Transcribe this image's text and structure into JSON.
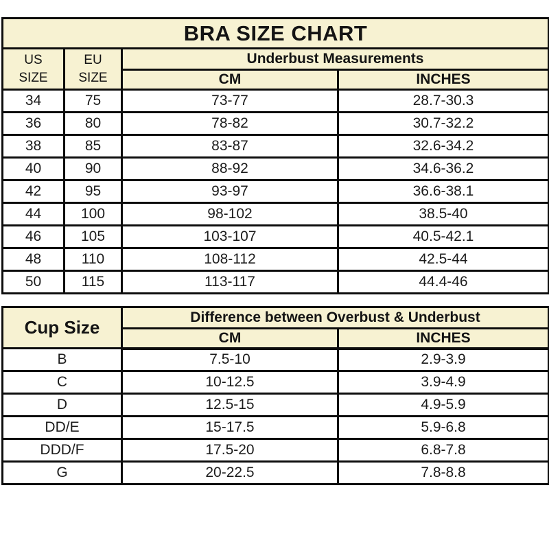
{
  "page": {
    "title": "BRA SIZE CHART",
    "colors": {
      "header_background": "#f7f2d2",
      "border": "#0d0d0d",
      "row_background": "#ffffff",
      "text": "#141414"
    }
  },
  "size_table": {
    "headers": {
      "us": "US\nSIZE",
      "eu": "EU\nSIZE",
      "group": "Underbust Measurements",
      "cm": "CM",
      "inches": "INCHES"
    },
    "rows": [
      {
        "us": "34",
        "eu": "75",
        "cm": "73-77",
        "inches": "28.7-30.3"
      },
      {
        "us": "36",
        "eu": "80",
        "cm": "78-82",
        "inches": "30.7-32.2"
      },
      {
        "us": "38",
        "eu": "85",
        "cm": "83-87",
        "inches": "32.6-34.2"
      },
      {
        "us": "40",
        "eu": "90",
        "cm": "88-92",
        "inches": "34.6-36.2"
      },
      {
        "us": "42",
        "eu": "95",
        "cm": "93-97",
        "inches": "36.6-38.1"
      },
      {
        "us": "44",
        "eu": "100",
        "cm": "98-102",
        "inches": "38.5-40"
      },
      {
        "us": "46",
        "eu": "105",
        "cm": "103-107",
        "inches": "40.5-42.1"
      },
      {
        "us": "48",
        "eu": "110",
        "cm": "108-112",
        "inches": "42.5-44"
      },
      {
        "us": "50",
        "eu": "115",
        "cm": "113-117",
        "inches": "44.4-46"
      }
    ]
  },
  "cup_table": {
    "headers": {
      "cup": "Cup Size",
      "group": "Difference between Overbust & Underbust",
      "cm": "CM",
      "inches": "INCHES"
    },
    "rows": [
      {
        "cup": "B",
        "cm": "7.5-10",
        "inches": "2.9-3.9"
      },
      {
        "cup": "C",
        "cm": "10-12.5",
        "inches": "3.9-4.9"
      },
      {
        "cup": "D",
        "cm": "12.5-15",
        "inches": "4.9-5.9"
      },
      {
        "cup": "DD/E",
        "cm": "15-17.5",
        "inches": "5.9-6.8"
      },
      {
        "cup": "DDD/F",
        "cm": "17.5-20",
        "inches": "6.8-7.8"
      },
      {
        "cup": "G",
        "cm": "20-22.5",
        "inches": "7.8-8.8"
      }
    ]
  },
  "chart_data": [
    {
      "type": "table",
      "title": "BRA SIZE CHART",
      "column_group": "Underbust Measurements",
      "columns": [
        "US SIZE",
        "EU SIZE",
        "CM",
        "INCHES"
      ],
      "rows": [
        [
          "34",
          "75",
          "73-77",
          "28.7-30.3"
        ],
        [
          "36",
          "80",
          "78-82",
          "30.7-32.2"
        ],
        [
          "38",
          "85",
          "83-87",
          "32.6-34.2"
        ],
        [
          "40",
          "90",
          "88-92",
          "34.6-36.2"
        ],
        [
          "42",
          "95",
          "93-97",
          "36.6-38.1"
        ],
        [
          "44",
          "100",
          "98-102",
          "38.5-40"
        ],
        [
          "46",
          "105",
          "103-107",
          "40.5-42.1"
        ],
        [
          "48",
          "110",
          "108-112",
          "42.5-44"
        ],
        [
          "50",
          "115",
          "113-117",
          "44.4-46"
        ]
      ]
    },
    {
      "type": "table",
      "title": "Difference between Overbust & Underbust",
      "columns": [
        "Cup Size",
        "CM",
        "INCHES"
      ],
      "rows": [
        [
          "B",
          "7.5-10",
          "2.9-3.9"
        ],
        [
          "C",
          "10-12.5",
          "3.9-4.9"
        ],
        [
          "D",
          "12.5-15",
          "4.9-5.9"
        ],
        [
          "DD/E",
          "15-17.5",
          "5.9-6.8"
        ],
        [
          "DDD/F",
          "17.5-20",
          "6.8-7.8"
        ],
        [
          "G",
          "20-22.5",
          "7.8-8.8"
        ]
      ]
    }
  ]
}
